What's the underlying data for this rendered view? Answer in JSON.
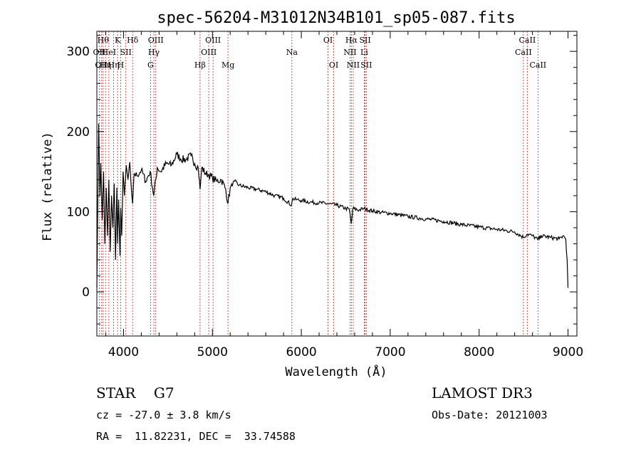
{
  "chart_data": {
    "type": "line",
    "title": "spec-56204-M31012N34B101_sp05-087.fits",
    "xlabel": "Wavelength (Å)",
    "ylabel": "Flux (relative)",
    "xlim": [
      3700,
      9100
    ],
    "ylim": [
      -55,
      325
    ],
    "xticks": [
      4000,
      5000,
      6000,
      7000,
      8000,
      9000
    ],
    "yticks": [
      0,
      100,
      200,
      300
    ],
    "series": [
      {
        "name": "spectrum",
        "x": [
          3700,
          3720,
          3735,
          3745,
          3760,
          3775,
          3790,
          3805,
          3820,
          3835,
          3850,
          3865,
          3880,
          3895,
          3910,
          3925,
          3933,
          3945,
          3960,
          3968,
          3980,
          3995,
          4010,
          4030,
          4050,
          4070,
          4090,
          4102,
          4120,
          4150,
          4200,
          4250,
          4300,
          4340,
          4380,
          4420,
          4480,
          4540,
          4600,
          4640,
          4700,
          4760,
          4800,
          4840,
          4861,
          4880,
          4920,
          4960,
          5000,
          5050,
          5100,
          5150,
          5175,
          5200,
          5250,
          5300,
          5400,
          5500,
          5600,
          5700,
          5800,
          5890,
          5900,
          5950,
          6000,
          6100,
          6200,
          6300,
          6400,
          6500,
          6540,
          6563,
          6580,
          6650,
          6700,
          6800,
          6900,
          7000,
          7200,
          7400,
          7600,
          7800,
          8000,
          8200,
          8400,
          8498,
          8542,
          8600,
          8662,
          8700,
          8800,
          8900,
          8950,
          8975,
          8990,
          9000
        ],
        "values": [
          5,
          210,
          120,
          160,
          90,
          150,
          60,
          130,
          70,
          140,
          50,
          120,
          80,
          135,
          40,
          130,
          60,
          115,
          45,
          105,
          70,
          150,
          120,
          158,
          140,
          162,
          125,
          110,
          148,
          145,
          152,
          138,
          150,
          120,
          155,
          150,
          160,
          158,
          172,
          166,
          165,
          170,
          160,
          155,
          128,
          155,
          148,
          146,
          142,
          138,
          140,
          128,
          110,
          130,
          138,
          133,
          130,
          128,
          125,
          120,
          117,
          108,
          116,
          115,
          114,
          112,
          111,
          110,
          108,
          104,
          103,
          85,
          104,
          102,
          104,
          101,
          99,
          98,
          94,
          91,
          88,
          84,
          81,
          78,
          75,
          68,
          72,
          70,
          65,
          70,
          68,
          66,
          70,
          66,
          40,
          5
        ]
      }
    ],
    "line_marks": [
      {
        "wave": 3727,
        "label": "OII",
        "row": 1
      },
      {
        "wave": 3750,
        "label": "OII",
        "row": 2
      },
      {
        "wave": 3770,
        "label": "Hθ",
        "row": 0
      },
      {
        "wave": 3798,
        "label": "Hη",
        "row": 2
      },
      {
        "wave": 3835,
        "label": "HeI",
        "row": 1
      },
      {
        "wave": 3889,
        "label": "Hη",
        "row": 2
      },
      {
        "wave": 3933,
        "label": "K",
        "row": 0
      },
      {
        "wave": 3968,
        "label": "H",
        "row": 2
      },
      {
        "wave": 4026,
        "label": "SII",
        "row": 1
      },
      {
        "wave": 4102,
        "label": "Hδ",
        "row": 0
      },
      {
        "wave": 4304,
        "label": "G",
        "row": 2
      },
      {
        "wave": 4341,
        "label": "Hγ",
        "row": 1
      },
      {
        "wave": 4363,
        "label": "OIII",
        "row": 0
      },
      {
        "wave": 4861,
        "label": "Hβ",
        "row": 2
      },
      {
        "wave": 4959,
        "label": "OIII",
        "row": 1
      },
      {
        "wave": 5007,
        "label": "OIII",
        "row": 0
      },
      {
        "wave": 5175,
        "label": "Mg",
        "row": 2
      },
      {
        "wave": 5894,
        "label": "Na",
        "row": 1
      },
      {
        "wave": 6300,
        "label": "OI",
        "row": 0
      },
      {
        "wave": 6364,
        "label": "OI",
        "row": 2
      },
      {
        "wave": 6548,
        "label": "NII",
        "row": 1
      },
      {
        "wave": 6563,
        "label": "Hα",
        "row": 0
      },
      {
        "wave": 6584,
        "label": "NII",
        "row": 2
      },
      {
        "wave": 6708,
        "label": "Li",
        "row": 1
      },
      {
        "wave": 6717,
        "label": "SII",
        "row": 0
      },
      {
        "wave": 6731,
        "label": "SII",
        "row": 2
      },
      {
        "wave": 8498,
        "label": "CaII",
        "row": 1
      },
      {
        "wave": 8542,
        "label": "CaII",
        "row": 0
      },
      {
        "wave": 8662,
        "label": "CaII",
        "row": 2
      }
    ]
  },
  "info": {
    "class_line": "STAR    G7",
    "cz_line": "cz = -27.0 ± 3.8 km/s",
    "radec_line": "RA =  11.82231, DEC =  33.74588",
    "survey": "LAMOST DR3",
    "obs_date": "Obs-Date: 20121003"
  },
  "colors": {
    "line_marker": "#cc2222",
    "spectrum": "#000000"
  }
}
